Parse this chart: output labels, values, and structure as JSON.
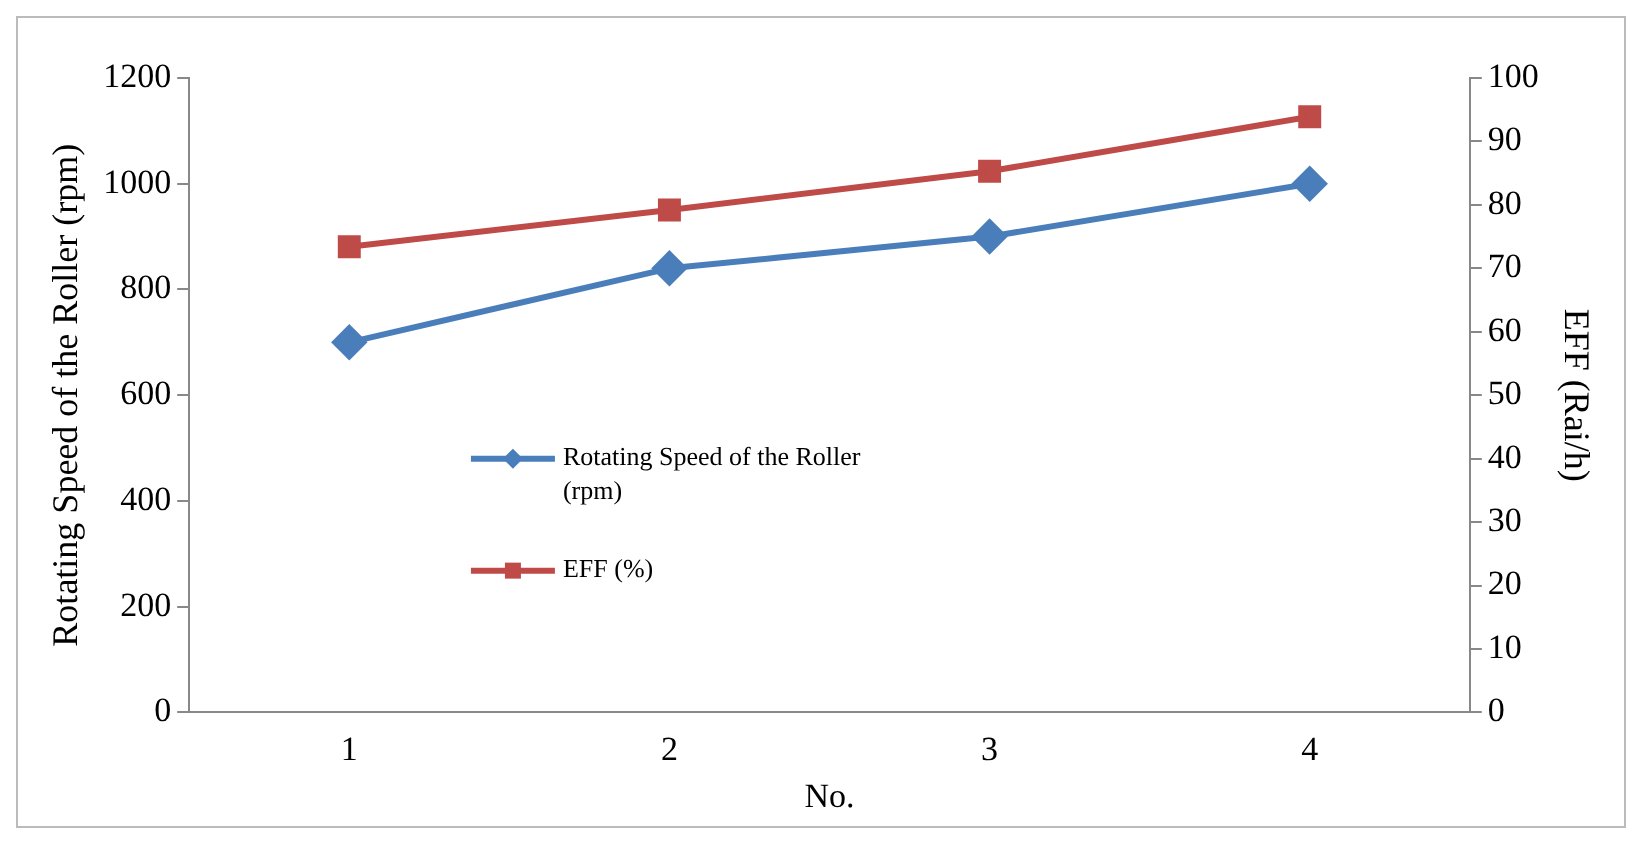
{
  "chart_data": {
    "type": "line",
    "xlabel": "No.",
    "ylabel": "Rotating Speed of the Roller (rpm)",
    "y2label": "EFF (Rai/h)",
    "categories": [
      "1",
      "2",
      "3",
      "4"
    ],
    "series": [
      {
        "name": "Rotating Speed of the Roller (rpm)",
        "color": "#4a7ebb",
        "values": [
          700,
          840,
          900,
          1000
        ],
        "marker": "diamond"
      },
      {
        "name": "EFF (%)",
        "color": "#be4b48",
        "values": [
          73.4,
          79.2,
          85.3,
          93.9
        ],
        "axis": "y2",
        "marker": "square"
      }
    ],
    "ylim": [
      0,
      1200
    ],
    "yticks": [
      0,
      200,
      400,
      600,
      800,
      1000,
      1200
    ],
    "y2lim": [
      0,
      100
    ],
    "y2ticks": [
      0,
      10,
      20,
      30,
      40,
      50,
      60,
      70,
      80,
      90,
      100
    ],
    "grid": false,
    "legend": "center",
    "line_style": "solid"
  }
}
